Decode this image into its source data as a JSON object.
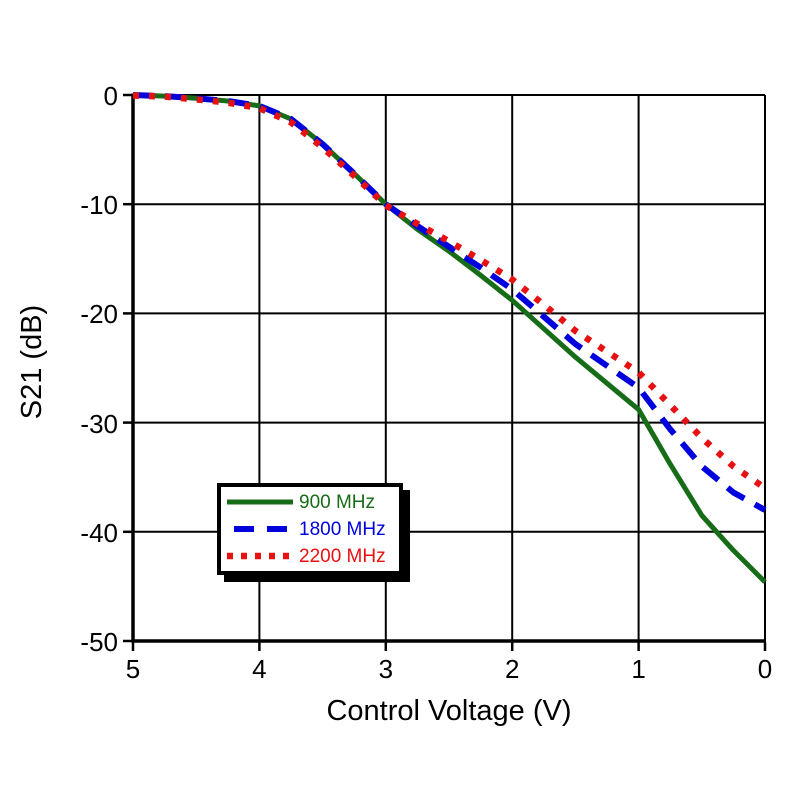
{
  "chart_data": {
    "type": "line",
    "title": "",
    "xlabel": "Control Voltage (V)",
    "ylabel": "S21 (dB)",
    "xlim": [
      5,
      0
    ],
    "ylim": [
      0,
      -50
    ],
    "x_ticks": [
      5,
      4,
      3,
      2,
      1,
      0
    ],
    "y_ticks": [
      0,
      -10,
      -20,
      -30,
      -40,
      -50
    ],
    "grid": true,
    "x_axis_reversed": true,
    "legend_position": "inside-lower-left",
    "axis_color": "#000000",
    "background_color": "#ffffff",
    "x": [
      5,
      4.75,
      4.5,
      4.25,
      4,
      3.75,
      3.5,
      3.25,
      3,
      2.75,
      2.5,
      2.25,
      2,
      1.75,
      1.5,
      1.25,
      1,
      0.75,
      0.5,
      0.25,
      0
    ],
    "series": [
      {
        "name": "900 MHz",
        "color": "#176d17",
        "style": "solid",
        "values": [
          0,
          -0.1,
          -0.3,
          -0.55,
          -1.0,
          -2.2,
          -4.5,
          -7.2,
          -10,
          -12.3,
          -14.3,
          -16.5,
          -18.8,
          -21.4,
          -24.0,
          -26.4,
          -28.8,
          -33.8,
          -38.5,
          -41.7,
          -44.6
        ]
      },
      {
        "name": "1800 MHz",
        "color": "#0000dd",
        "style": "dashed",
        "values": [
          0,
          -0.1,
          -0.3,
          -0.55,
          -1.0,
          -2.2,
          -4.5,
          -7.2,
          -10,
          -12.0,
          -13.9,
          -15.8,
          -17.8,
          -20.3,
          -22.8,
          -24.8,
          -26.8,
          -30.6,
          -34.0,
          -36.4,
          -38.0
        ]
      },
      {
        "name": "2200 MHz",
        "color": "#e81111",
        "style": "dotted",
        "values": [
          -0.05,
          -0.15,
          -0.4,
          -0.7,
          -1.2,
          -2.5,
          -4.8,
          -7.4,
          -10.1,
          -11.8,
          -13.4,
          -15.1,
          -16.9,
          -19.2,
          -21.6,
          -23.5,
          -25.4,
          -28.4,
          -31.4,
          -34.0,
          -36.0
        ]
      }
    ]
  }
}
